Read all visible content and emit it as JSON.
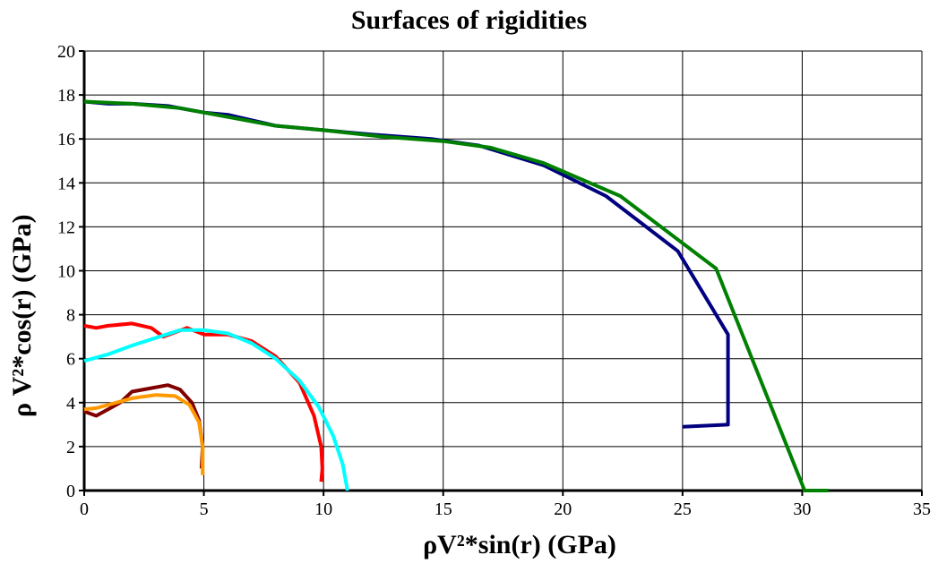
{
  "chart_data": {
    "type": "line",
    "title": "Surfaces of rigidities",
    "xlabel": "ρV²*sin(r) (GPa)",
    "ylabel": "ρ  V²*cos(r) (GPa)",
    "xlim": [
      0,
      35
    ],
    "ylim": [
      0,
      20
    ],
    "xticks": [
      0,
      5,
      10,
      15,
      20,
      25,
      30,
      35
    ],
    "yticks": [
      0,
      2,
      4,
      6,
      8,
      10,
      12,
      14,
      16,
      18,
      20
    ],
    "grid": true,
    "series": [
      {
        "color": "#000080",
        "points": [
          [
            0,
            17.7
          ],
          [
            1,
            17.6
          ],
          [
            2,
            17.6
          ],
          [
            3.5,
            17.5
          ],
          [
            5,
            17.2
          ],
          [
            6,
            17.1
          ],
          [
            8,
            16.6
          ],
          [
            10,
            16.4
          ],
          [
            12,
            16.2
          ],
          [
            14.5,
            16.0
          ],
          [
            16.5,
            15.7
          ],
          [
            19.2,
            14.8
          ],
          [
            21.8,
            13.4
          ],
          [
            24.8,
            10.9
          ],
          [
            26.9,
            7.1
          ],
          [
            26.9,
            3.0
          ],
          [
            25,
            2.9
          ]
        ]
      },
      {
        "color": "#008000",
        "points": [
          [
            0,
            17.7
          ],
          [
            2,
            17.6
          ],
          [
            4,
            17.4
          ],
          [
            6,
            17.0
          ],
          [
            8,
            16.6
          ],
          [
            10,
            16.4
          ],
          [
            12.5,
            16.1
          ],
          [
            15,
            15.9
          ],
          [
            17,
            15.6
          ],
          [
            19.2,
            14.9
          ],
          [
            22.4,
            13.4
          ],
          [
            26.4,
            10.1
          ],
          [
            30.1,
            0.0
          ],
          [
            31.1,
            0.0
          ]
        ]
      },
      {
        "color": "#ff0000",
        "points": [
          [
            0,
            7.5
          ],
          [
            0.5,
            7.4
          ],
          [
            1,
            7.5
          ],
          [
            2,
            7.6
          ],
          [
            2.8,
            7.4
          ],
          [
            3.3,
            7.0
          ],
          [
            3.8,
            7.2
          ],
          [
            4.3,
            7.4
          ],
          [
            5,
            7.1
          ],
          [
            6,
            7.1
          ],
          [
            7,
            6.8
          ],
          [
            8,
            6.1
          ],
          [
            9,
            4.9
          ],
          [
            9.6,
            3.4
          ],
          [
            9.9,
            2.0
          ],
          [
            9.95,
            1.0
          ],
          [
            9.9,
            0.4
          ]
        ]
      },
      {
        "color": "#00ffff",
        "points": [
          [
            0,
            5.9
          ],
          [
            1,
            6.2
          ],
          [
            2,
            6.6
          ],
          [
            3,
            6.95
          ],
          [
            4,
            7.3
          ],
          [
            5,
            7.3
          ],
          [
            6,
            7.15
          ],
          [
            7,
            6.7
          ],
          [
            8,
            6.0
          ],
          [
            9,
            5.0
          ],
          [
            9.8,
            3.8
          ],
          [
            10.4,
            2.5
          ],
          [
            10.8,
            1.2
          ],
          [
            11.0,
            0.0
          ]
        ]
      },
      {
        "color": "#800000",
        "points": [
          [
            0,
            3.6
          ],
          [
            0.5,
            3.4
          ],
          [
            1,
            3.7
          ],
          [
            1.5,
            4.0
          ],
          [
            2,
            4.5
          ],
          [
            3,
            4.7
          ],
          [
            3.5,
            4.8
          ],
          [
            4,
            4.6
          ],
          [
            4.5,
            4.0
          ],
          [
            4.8,
            3.2
          ],
          [
            4.95,
            2.0
          ],
          [
            4.9,
            1.0
          ]
        ]
      },
      {
        "color": "#ff9900",
        "points": [
          [
            0,
            3.7
          ],
          [
            0.5,
            3.75
          ],
          [
            1,
            3.9
          ],
          [
            2,
            4.2
          ],
          [
            3,
            4.35
          ],
          [
            3.8,
            4.3
          ],
          [
            4.4,
            3.9
          ],
          [
            4.8,
            3.1
          ],
          [
            4.95,
            2.0
          ],
          [
            4.95,
            1.2
          ],
          [
            4.95,
            0.7
          ]
        ]
      }
    ]
  }
}
